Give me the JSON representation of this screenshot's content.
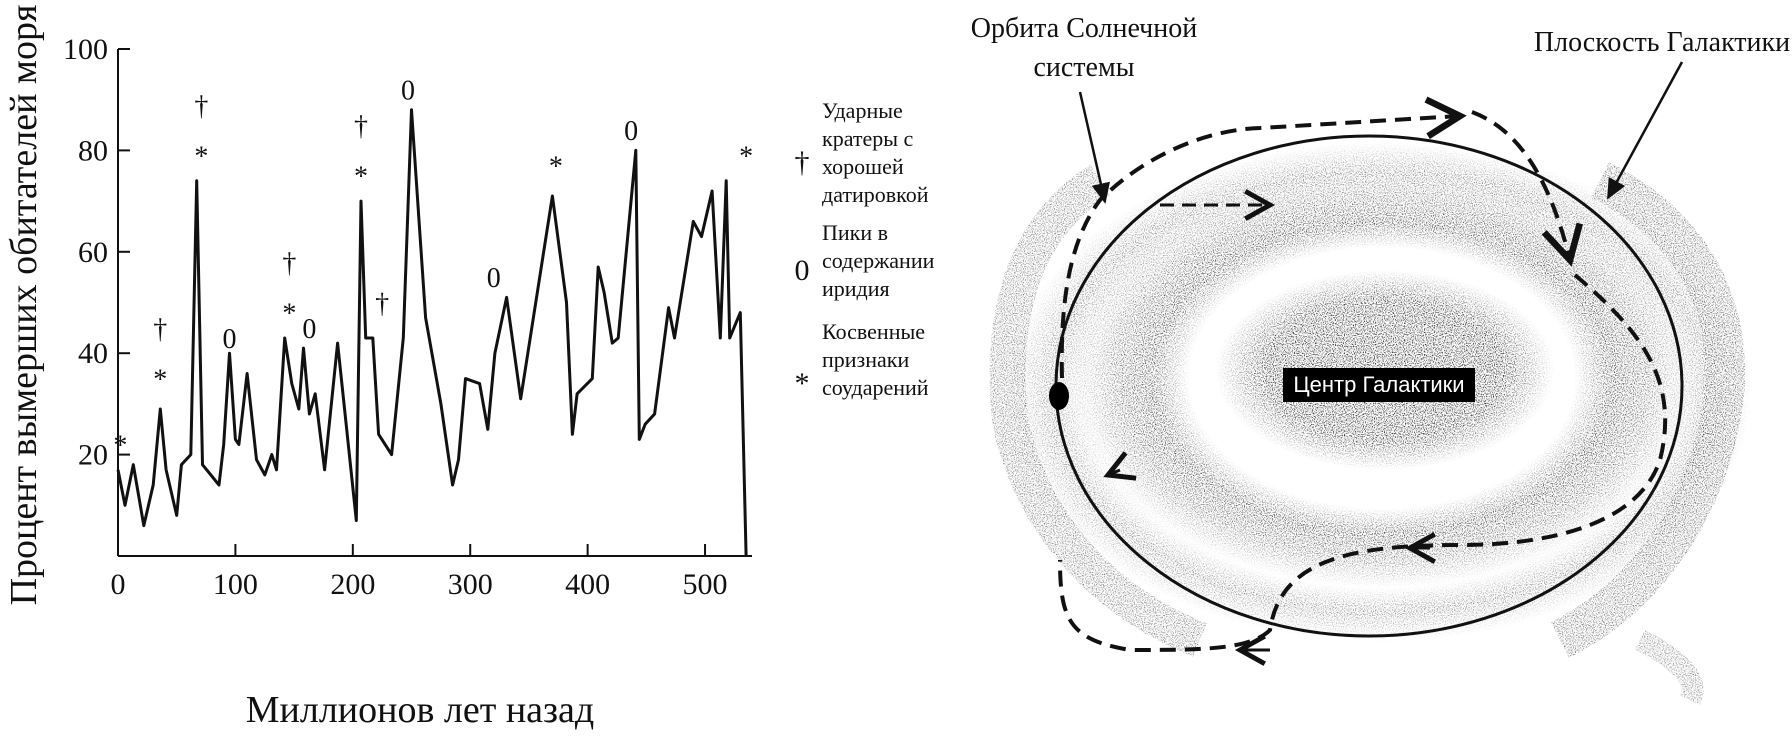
{
  "chart_data": {
    "type": "line",
    "xlabel": "Миллионов лет назад",
    "ylabel": "Процент вымерших обитателей моря",
    "xlim": [
      0,
      540
    ],
    "ylim": [
      0,
      100
    ],
    "x_ticks": [
      "0",
      "100",
      "200",
      "300",
      "400",
      "500"
    ],
    "y_ticks": [
      "20",
      "40",
      "60",
      "80",
      "100"
    ],
    "grid": false,
    "legend_position": "right",
    "series": [
      {
        "x": [
          0,
          6,
          13,
          22,
          30,
          36,
          41,
          50,
          54,
          62,
          67,
          72,
          86,
          90,
          95,
          100,
          103,
          110,
          118,
          125,
          131,
          135,
          142,
          148,
          154,
          158,
          163,
          168,
          176,
          187,
          203,
          207,
          211,
          217,
          222,
          233,
          243,
          250,
          262,
          275,
          285,
          290,
          296,
          308,
          315,
          321,
          331,
          343,
          370,
          382,
          387,
          391,
          404,
          409,
          414,
          421,
          426,
          441,
          444,
          449,
          457,
          469,
          474,
          490,
          497,
          506,
          513,
          518,
          521,
          530,
          535
        ],
        "y": [
          17,
          10,
          18,
          6,
          14,
          29,
          17,
          8,
          18,
          20,
          74,
          18,
          14,
          22,
          40,
          23,
          22,
          36,
          19,
          16,
          20,
          17,
          43,
          34,
          29,
          41,
          28,
          32,
          17,
          42,
          7,
          70,
          43,
          43,
          24,
          20,
          43,
          88,
          47,
          30,
          14,
          19,
          35,
          34,
          25,
          40,
          51,
          31,
          71,
          50,
          24,
          32,
          35,
          57,
          52,
          42,
          43,
          80,
          23,
          26,
          28,
          49,
          43,
          66,
          63,
          72,
          43,
          74,
          43,
          48,
          0
        ]
      }
    ],
    "annotations": [
      {
        "symbol": "*",
        "x": 2,
        "y": 24
      },
      {
        "symbol": "†",
        "x": 36,
        "y": 45
      },
      {
        "symbol": "*",
        "x": 36,
        "y": 37
      },
      {
        "symbol": "†",
        "x": 71,
        "y": 89
      },
      {
        "symbol": "*",
        "x": 71,
        "y": 81
      },
      {
        "symbol": "0",
        "x": 95,
        "y": 43
      },
      {
        "symbol": "†",
        "x": 146,
        "y": 58
      },
      {
        "symbol": "*",
        "x": 146,
        "y": 50
      },
      {
        "symbol": "0",
        "x": 163,
        "y": 45
      },
      {
        "symbol": "†",
        "x": 207,
        "y": 85
      },
      {
        "symbol": "*",
        "x": 207,
        "y": 77
      },
      {
        "symbol": "†",
        "x": 225,
        "y": 50
      },
      {
        "symbol": "0",
        "x": 247,
        "y": 92
      },
      {
        "symbol": "0",
        "x": 320,
        "y": 55
      },
      {
        "symbol": "*",
        "x": 373,
        "y": 79
      },
      {
        "symbol": "0",
        "x": 437,
        "y": 84
      },
      {
        "symbol": "*",
        "x": 535,
        "y": 81
      }
    ]
  },
  "legend": [
    {
      "symbol": "†",
      "lines": [
        "Ударные",
        "кратеры с",
        "хорошей",
        "датировкой"
      ]
    },
    {
      "symbol": "0",
      "lines": [
        "Пики в",
        "содержании",
        "иридия"
      ]
    },
    {
      "symbol": "*",
      "lines": [
        "Косвенные",
        "признаки",
        "соударений"
      ]
    }
  ],
  "diagram": {
    "orbit_label_lines": [
      "Орбита Солнечной",
      "системы"
    ],
    "plane_label": "Плоскость Галактики",
    "center_label": "Центр Галактики"
  }
}
